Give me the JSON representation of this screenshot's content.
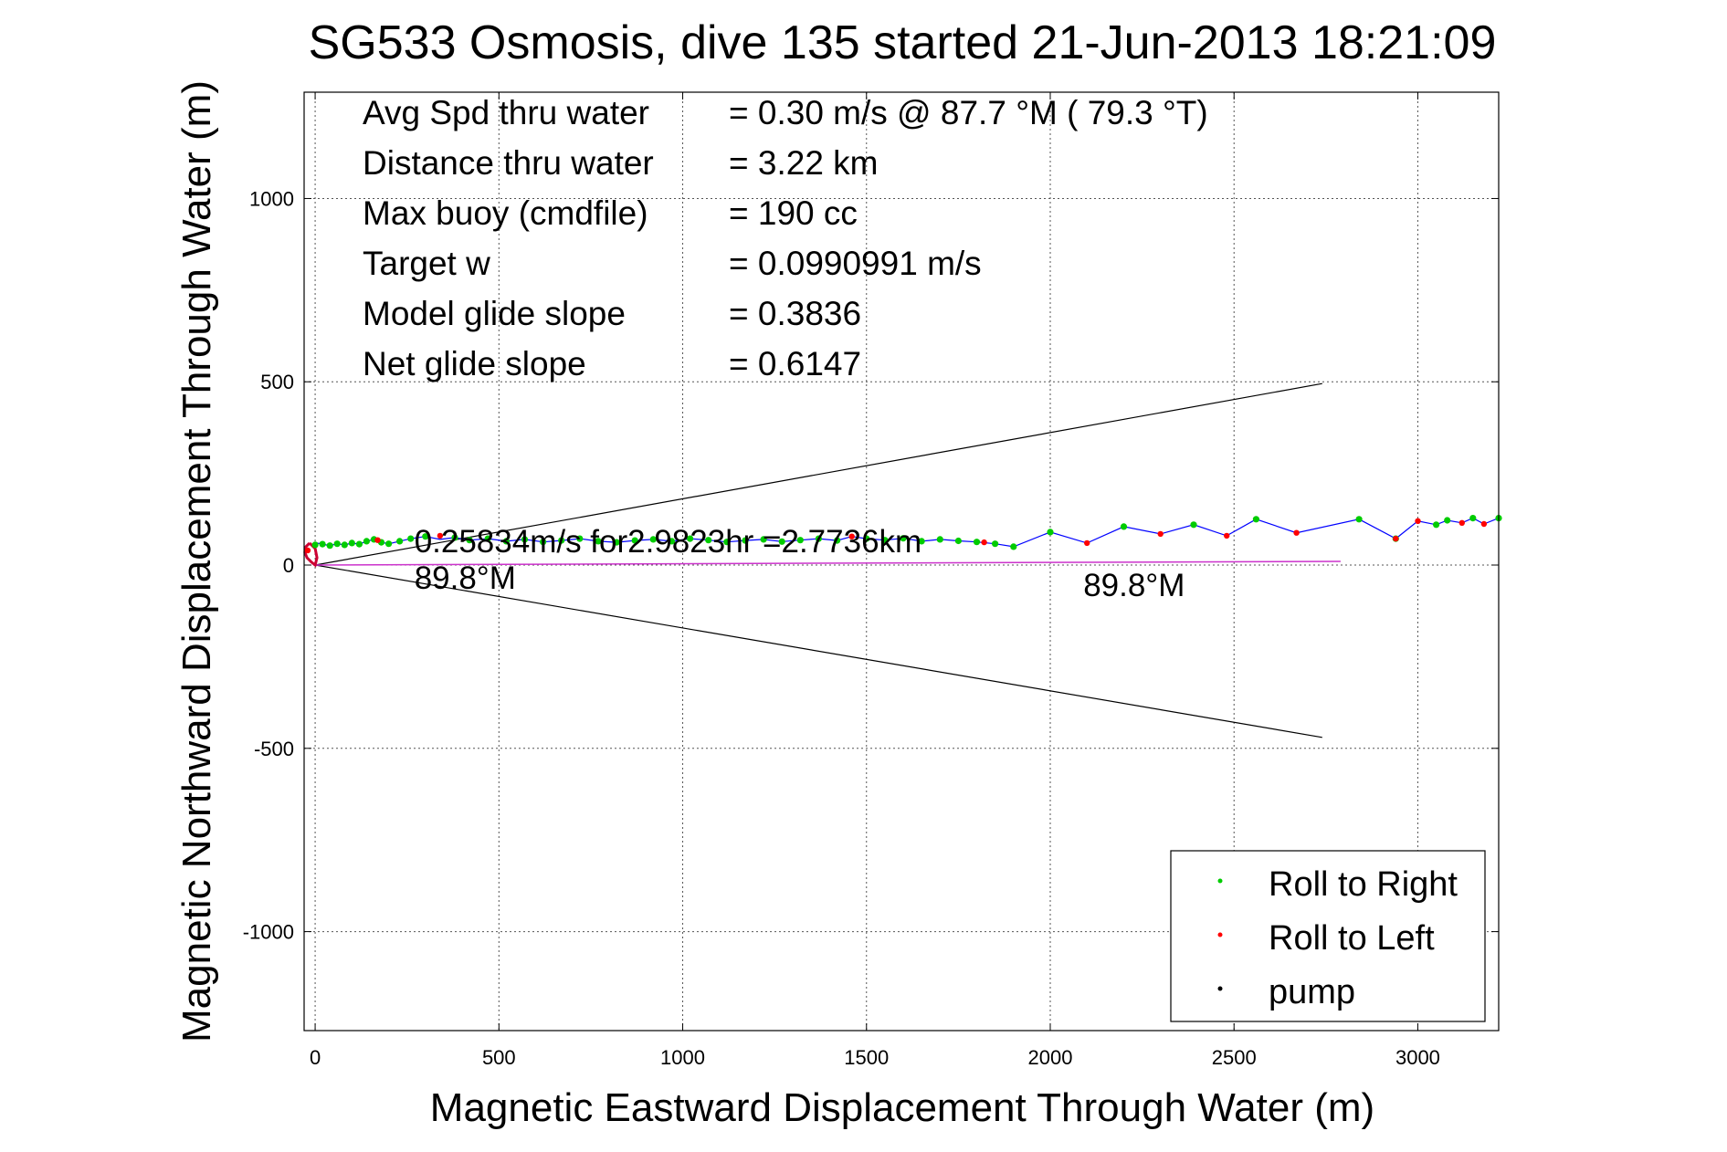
{
  "chart_data": {
    "type": "scatter",
    "title": "SG533 Osmosis, dive 135 started 21-Jun-2013 18:21:09",
    "xlabel": "Magnetic Eastward Displacement Through Water (m)",
    "ylabel": "Magnetic Northward Displacement Through Water (m)",
    "xlim": [
      -30,
      3220
    ],
    "ylim": [
      -1270,
      1290
    ],
    "xticks": [
      0,
      500,
      1000,
      1500,
      2000,
      2500,
      3000
    ],
    "yticks": [
      -1000,
      -500,
      0,
      500,
      1000
    ],
    "grid": true,
    "legend_position": "bottom-right",
    "stats": [
      {
        "label": "Avg Spd thru water",
        "value": "=  0.30 m/s @  87.7 °M ( 79.3 °T)"
      },
      {
        "label": "Distance thru water",
        "value": "=  3.22 km"
      },
      {
        "label": "Max buoy (cmdfile)",
        "value": "= 190 cc"
      },
      {
        "label": "Target w",
        "value": "= 0.0990991 m/s"
      },
      {
        "label": "Model glide slope",
        "value": "= 0.3836"
      },
      {
        "label": "Net glide slope",
        "value": "= 0.6147"
      }
    ],
    "annotations": [
      {
        "text": "0.25834m/s for2.9823hr =2.7736km",
        "x": 270,
        "y": 35
      },
      {
        "text": "89.8°M",
        "x": 270,
        "y": -65
      },
      {
        "text": "89.8°M",
        "x": 2090,
        "y": -85
      }
    ],
    "series": [
      {
        "name": "track",
        "color": "#0000ff",
        "x": [
          0,
          5,
          20,
          40,
          60,
          80,
          100,
          120,
          140,
          160,
          180,
          200,
          230,
          260,
          300,
          340,
          380,
          420,
          470,
          520,
          570,
          620,
          670,
          720,
          770,
          820,
          870,
          920,
          970,
          1020,
          1070,
          1120,
          1170,
          1220,
          1270,
          1320,
          1370,
          1420,
          1460,
          1500,
          1550,
          1600,
          1650,
          1700,
          1750,
          1800,
          1850,
          1900,
          2000,
          2100,
          2200,
          2300,
          2390,
          2480,
          2560,
          2670,
          2840,
          2940,
          3000,
          3050,
          3080,
          3120,
          3150,
          3180,
          3220
        ],
        "y": [
          55,
          60,
          57,
          53,
          58,
          55,
          60,
          57,
          65,
          70,
          62,
          58,
          65,
          72,
          78,
          70,
          75,
          68,
          72,
          65,
          70,
          63,
          67,
          72,
          65,
          62,
          67,
          70,
          65,
          72,
          68,
          63,
          67,
          70,
          64,
          68,
          72,
          67,
          78,
          72,
          68,
          73,
          65,
          70,
          66,
          63,
          58,
          50,
          90,
          60,
          105,
          85,
          110,
          80,
          125,
          88,
          125,
          72,
          120,
          110,
          122,
          115,
          128,
          112,
          128
        ]
      },
      {
        "name": "dive start loop",
        "color": "#cc0033",
        "x": [
          -15,
          -25,
          -28,
          -22,
          -10,
          0,
          5,
          0,
          -15
        ],
        "y": [
          60,
          50,
          35,
          20,
          8,
          0,
          20,
          45,
          60
        ]
      },
      {
        "name": "Roll to Right",
        "color": "#00cc00",
        "x": [
          0,
          20,
          40,
          60,
          80,
          100,
          120,
          140,
          160,
          180,
          200,
          230,
          260,
          300,
          380,
          420,
          470,
          520,
          570,
          620,
          670,
          720,
          770,
          820,
          870,
          920,
          970,
          1020,
          1070,
          1120,
          1170,
          1220,
          1270,
          1320,
          1370,
          1420,
          1500,
          1550,
          1600,
          1650,
          1700,
          1750,
          1800,
          1850,
          1900,
          2000,
          2200,
          2390,
          2560,
          2840,
          2940,
          3050,
          3080,
          3150,
          3220
        ],
        "y": [
          55,
          57,
          53,
          58,
          55,
          60,
          57,
          65,
          70,
          62,
          58,
          65,
          72,
          78,
          75,
          68,
          72,
          65,
          70,
          63,
          67,
          72,
          65,
          62,
          67,
          70,
          65,
          72,
          68,
          63,
          67,
          70,
          64,
          68,
          72,
          67,
          72,
          68,
          73,
          65,
          70,
          66,
          63,
          58,
          50,
          90,
          105,
          110,
          125,
          125,
          72,
          110,
          122,
          128,
          128
        ]
      },
      {
        "name": "Roll to Left",
        "color": "#ff0000",
        "x": [
          -20,
          170,
          340,
          1460,
          1820,
          2100,
          2300,
          2480,
          2670,
          2940,
          3000,
          3120,
          3180
        ],
        "y": [
          40,
          68,
          80,
          78,
          62,
          60,
          85,
          80,
          88,
          72,
          120,
          115,
          112
        ]
      },
      {
        "name": "pump",
        "color": "#000000",
        "x": [],
        "y": []
      },
      {
        "name": "heading line",
        "color": "#cc33cc",
        "x": [
          0,
          2790
        ],
        "y": [
          0,
          10
        ]
      },
      {
        "name": "glide cone upper",
        "color": "#000000",
        "x": [
          0,
          2740
        ],
        "y": [
          0,
          495
        ]
      },
      {
        "name": "glide cone lower",
        "color": "#000000",
        "x": [
          0,
          2740
        ],
        "y": [
          0,
          -470
        ]
      }
    ],
    "legend": [
      {
        "label": "Roll to Right",
        "color": "#00cc00"
      },
      {
        "label": "Roll to Left",
        "color": "#ff0000"
      },
      {
        "label": "pump",
        "color": "#000000"
      }
    ]
  }
}
